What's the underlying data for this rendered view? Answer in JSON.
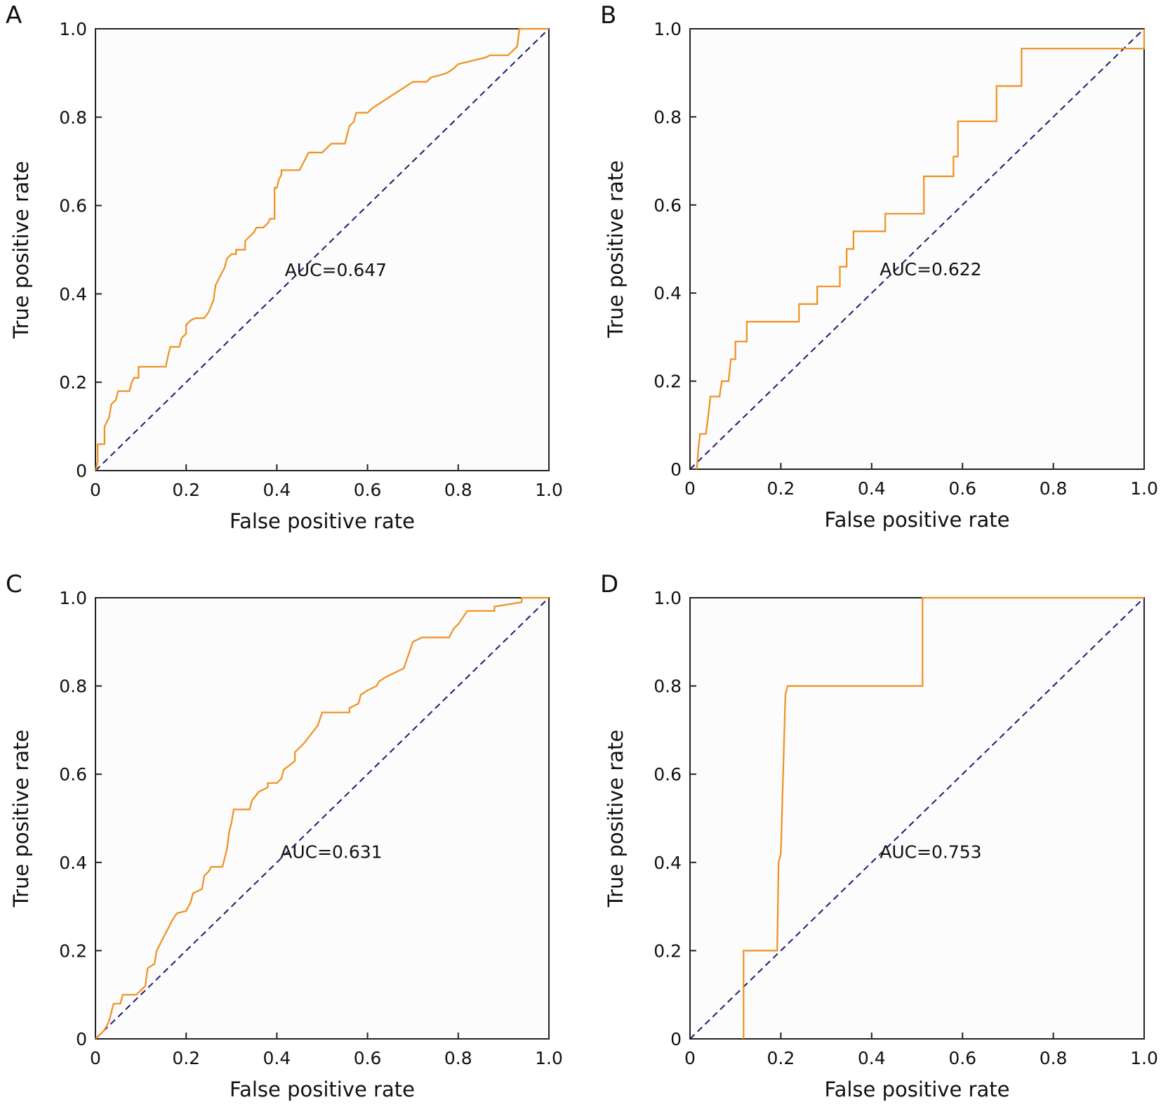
{
  "chart_data": [
    {
      "panel": "A",
      "type": "line",
      "xlabel": "False positive rate",
      "ylabel": "True positive rate",
      "xlim": [
        0,
        1.0
      ],
      "ylim": [
        0,
        1.0
      ],
      "xticks": [
        "0",
        "0.2",
        "0.4",
        "0.6",
        "0.8",
        "1.0"
      ],
      "yticks": [
        "0",
        "0.2",
        "0.4",
        "0.6",
        "0.8",
        "1.0"
      ],
      "annotation": {
        "text": "AUC=0.647",
        "x": 0.53,
        "y": 0.44
      },
      "roc_color": "#f0901e",
      "ref_color": "#1c1c6e",
      "reference": [
        [
          0,
          0
        ],
        [
          1,
          1
        ]
      ],
      "series": [
        {
          "values": [
            [
              0,
              0
            ],
            [
              0.005,
              0.02
            ],
            [
              0.005,
              0.06
            ],
            [
              0.02,
              0.06
            ],
            [
              0.02,
              0.1
            ],
            [
              0.03,
              0.12
            ],
            [
              0.035,
              0.15
            ],
            [
              0.045,
              0.16
            ],
            [
              0.05,
              0.18
            ],
            [
              0.075,
              0.18
            ],
            [
              0.08,
              0.2
            ],
            [
              0.085,
              0.21
            ],
            [
              0.095,
              0.21
            ],
            [
              0.095,
              0.235
            ],
            [
              0.155,
              0.235
            ],
            [
              0.16,
              0.26
            ],
            [
              0.165,
              0.28
            ],
            [
              0.185,
              0.28
            ],
            [
              0.19,
              0.3
            ],
            [
              0.2,
              0.31
            ],
            [
              0.2,
              0.33
            ],
            [
              0.21,
              0.34
            ],
            [
              0.22,
              0.345
            ],
            [
              0.24,
              0.345
            ],
            [
              0.25,
              0.36
            ],
            [
              0.26,
              0.385
            ],
            [
              0.265,
              0.42
            ],
            [
              0.27,
              0.43
            ],
            [
              0.275,
              0.44
            ],
            [
              0.28,
              0.45
            ],
            [
              0.285,
              0.46
            ],
            [
              0.29,
              0.48
            ],
            [
              0.3,
              0.49
            ],
            [
              0.31,
              0.49
            ],
            [
              0.31,
              0.5
            ],
            [
              0.33,
              0.5
            ],
            [
              0.33,
              0.52
            ],
            [
              0.34,
              0.53
            ],
            [
              0.35,
              0.54
            ],
            [
              0.355,
              0.55
            ],
            [
              0.37,
              0.55
            ],
            [
              0.38,
              0.56
            ],
            [
              0.385,
              0.57
            ],
            [
              0.395,
              0.57
            ],
            [
              0.395,
              0.64
            ],
            [
              0.4,
              0.64
            ],
            [
              0.405,
              0.66
            ],
            [
              0.41,
              0.67
            ],
            [
              0.41,
              0.68
            ],
            [
              0.45,
              0.68
            ],
            [
              0.455,
              0.69
            ],
            [
              0.46,
              0.7
            ],
            [
              0.47,
              0.72
            ],
            [
              0.5,
              0.72
            ],
            [
              0.51,
              0.73
            ],
            [
              0.52,
              0.74
            ],
            [
              0.55,
              0.74
            ],
            [
              0.56,
              0.78
            ],
            [
              0.57,
              0.79
            ],
            [
              0.575,
              0.81
            ],
            [
              0.6,
              0.81
            ],
            [
              0.61,
              0.82
            ],
            [
              0.625,
              0.83
            ],
            [
              0.64,
              0.84
            ],
            [
              0.655,
              0.85
            ],
            [
              0.67,
              0.86
            ],
            [
              0.685,
              0.87
            ],
            [
              0.7,
              0.88
            ],
            [
              0.73,
              0.88
            ],
            [
              0.74,
              0.89
            ],
            [
              0.76,
              0.895
            ],
            [
              0.775,
              0.9
            ],
            [
              0.79,
              0.91
            ],
            [
              0.8,
              0.92
            ],
            [
              0.82,
              0.925
            ],
            [
              0.84,
              0.93
            ],
            [
              0.86,
              0.935
            ],
            [
              0.87,
              0.94
            ],
            [
              0.91,
              0.94
            ],
            [
              0.92,
              0.95
            ],
            [
              0.93,
              0.96
            ],
            [
              0.935,
              1.0
            ],
            [
              1.0,
              1.0
            ]
          ]
        }
      ]
    },
    {
      "panel": "B",
      "type": "line",
      "xlabel": "False positive rate",
      "ylabel": "True positive rate",
      "xlim": [
        0,
        1.0
      ],
      "ylim": [
        0,
        1.0
      ],
      "xticks": [
        "0",
        "0.2",
        "0.4",
        "0.6",
        "0.8",
        "1.0"
      ],
      "yticks": [
        "0",
        "0.2",
        "0.4",
        "0.6",
        "0.8",
        "1.0"
      ],
      "annotation": {
        "text": "AUC=0.622",
        "x": 0.53,
        "y": 0.44
      },
      "roc_color": "#f0901e",
      "ref_color": "#1c1c6e",
      "reference": [
        [
          0,
          0
        ],
        [
          1,
          1
        ]
      ],
      "series": [
        {
          "values": [
            [
              0.015,
              0
            ],
            [
              0.018,
              0.04
            ],
            [
              0.022,
              0.08
            ],
            [
              0.035,
              0.08
            ],
            [
              0.04,
              0.12
            ],
            [
              0.045,
              0.165
            ],
            [
              0.065,
              0.165
            ],
            [
              0.07,
              0.2
            ],
            [
              0.085,
              0.2
            ],
            [
              0.09,
              0.25
            ],
            [
              0.1,
              0.25
            ],
            [
              0.1,
              0.29
            ],
            [
              0.125,
              0.29
            ],
            [
              0.125,
              0.335
            ],
            [
              0.24,
              0.335
            ],
            [
              0.24,
              0.375
            ],
            [
              0.28,
              0.375
            ],
            [
              0.28,
              0.415
            ],
            [
              0.33,
              0.415
            ],
            [
              0.33,
              0.46
            ],
            [
              0.345,
              0.46
            ],
            [
              0.345,
              0.5
            ],
            [
              0.36,
              0.5
            ],
            [
              0.36,
              0.54
            ],
            [
              0.43,
              0.54
            ],
            [
              0.43,
              0.58
            ],
            [
              0.515,
              0.58
            ],
            [
              0.515,
              0.665
            ],
            [
              0.58,
              0.665
            ],
            [
              0.58,
              0.71
            ],
            [
              0.59,
              0.71
            ],
            [
              0.59,
              0.79
            ],
            [
              0.675,
              0.79
            ],
            [
              0.675,
              0.87
            ],
            [
              0.73,
              0.87
            ],
            [
              0.73,
              0.955
            ],
            [
              1.0,
              0.955
            ],
            [
              1.0,
              1.0
            ]
          ]
        }
      ]
    },
    {
      "panel": "C",
      "type": "line",
      "xlabel": "False positive rate",
      "ylabel": "True positive rate",
      "xlim": [
        0,
        1.0
      ],
      "ylim": [
        0,
        1.0
      ],
      "xticks": [
        "0",
        "0.2",
        "0.4",
        "0.6",
        "0.8",
        "1.0"
      ],
      "yticks": [
        "0",
        "0.2",
        "0.4",
        "0.6",
        "0.8",
        "1.0"
      ],
      "annotation": {
        "text": "AUC=0.631",
        "x": 0.52,
        "y": 0.41
      },
      "roc_color": "#f0901e",
      "ref_color": "#1c1c6e",
      "reference": [
        [
          0,
          0
        ],
        [
          1,
          1
        ]
      ],
      "series": [
        {
          "values": [
            [
              0.0,
              0.0
            ],
            [
              0.01,
              0.01
            ],
            [
              0.02,
              0.02
            ],
            [
              0.03,
              0.04
            ],
            [
              0.035,
              0.06
            ],
            [
              0.04,
              0.08
            ],
            [
              0.055,
              0.08
            ],
            [
              0.06,
              0.1
            ],
            [
              0.09,
              0.1
            ],
            [
              0.1,
              0.11
            ],
            [
              0.11,
              0.12
            ],
            [
              0.115,
              0.16
            ],
            [
              0.13,
              0.17
            ],
            [
              0.135,
              0.2
            ],
            [
              0.145,
              0.22
            ],
            [
              0.155,
              0.24
            ],
            [
              0.16,
              0.25
            ],
            [
              0.17,
              0.27
            ],
            [
              0.18,
              0.285
            ],
            [
              0.2,
              0.29
            ],
            [
              0.21,
              0.31
            ],
            [
              0.215,
              0.33
            ],
            [
              0.235,
              0.34
            ],
            [
              0.24,
              0.37
            ],
            [
              0.25,
              0.38
            ],
            [
              0.255,
              0.39
            ],
            [
              0.28,
              0.39
            ],
            [
              0.285,
              0.41
            ],
            [
              0.29,
              0.43
            ],
            [
              0.295,
              0.47
            ],
            [
              0.3,
              0.49
            ],
            [
              0.305,
              0.52
            ],
            [
              0.34,
              0.52
            ],
            [
              0.345,
              0.54
            ],
            [
              0.36,
              0.56
            ],
            [
              0.38,
              0.57
            ],
            [
              0.38,
              0.58
            ],
            [
              0.4,
              0.58
            ],
            [
              0.41,
              0.59
            ],
            [
              0.415,
              0.61
            ],
            [
              0.44,
              0.63
            ],
            [
              0.44,
              0.65
            ],
            [
              0.46,
              0.67
            ],
            [
              0.475,
              0.69
            ],
            [
              0.49,
              0.71
            ],
            [
              0.5,
              0.74
            ],
            [
              0.56,
              0.74
            ],
            [
              0.56,
              0.75
            ],
            [
              0.58,
              0.76
            ],
            [
              0.585,
              0.78
            ],
            [
              0.6,
              0.79
            ],
            [
              0.62,
              0.8
            ],
            [
              0.625,
              0.81
            ],
            [
              0.64,
              0.82
            ],
            [
              0.66,
              0.83
            ],
            [
              0.68,
              0.84
            ],
            [
              0.69,
              0.87
            ],
            [
              0.7,
              0.9
            ],
            [
              0.72,
              0.91
            ],
            [
              0.78,
              0.91
            ],
            [
              0.79,
              0.93
            ],
            [
              0.8,
              0.94
            ],
            [
              0.81,
              0.955
            ],
            [
              0.82,
              0.97
            ],
            [
              0.88,
              0.97
            ],
            [
              0.88,
              0.98
            ],
            [
              0.94,
              0.99
            ],
            [
              0.94,
              1.0
            ],
            [
              1.0,
              1.0
            ]
          ]
        }
      ]
    },
    {
      "panel": "D",
      "type": "line",
      "xlabel": "False positive rate",
      "ylabel": "True positive rate",
      "xlim": [
        0,
        1.0
      ],
      "ylim": [
        0,
        1.0
      ],
      "xticks": [
        "0",
        "0.2",
        "0.4",
        "0.6",
        "0.8",
        "1.0"
      ],
      "yticks": [
        "0",
        "0.2",
        "0.4",
        "0.6",
        "0.8",
        "1.0"
      ],
      "annotation": {
        "text": "AUC=0.753",
        "x": 0.53,
        "y": 0.41
      },
      "roc_color": "#f0901e",
      "ref_color": "#1c1c6e",
      "reference": [
        [
          0,
          0
        ],
        [
          1,
          1
        ]
      ],
      "series": [
        {
          "values": [
            [
              0.118,
              0.0
            ],
            [
              0.118,
              0.2
            ],
            [
              0.192,
              0.2
            ],
            [
              0.195,
              0.4
            ],
            [
              0.2,
              0.42
            ],
            [
              0.21,
              0.78
            ],
            [
              0.215,
              0.8
            ],
            [
              0.512,
              0.8
            ],
            [
              0.512,
              1.0
            ],
            [
              1.0,
              1.0
            ]
          ]
        }
      ]
    }
  ]
}
